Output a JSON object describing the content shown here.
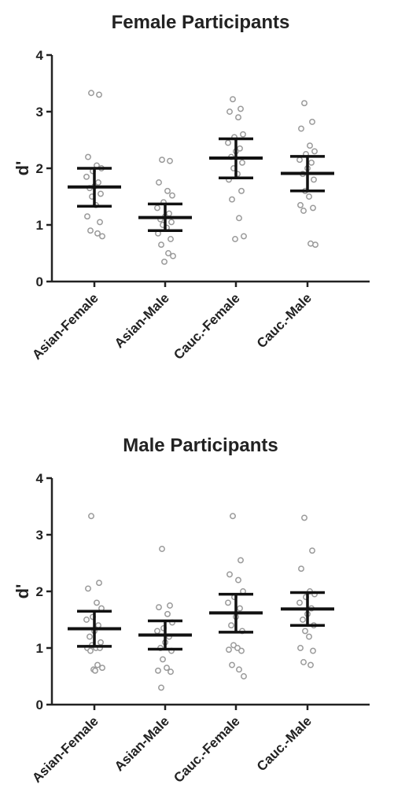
{
  "chart_data": [
    {
      "type": "scatter",
      "title": "Female Participants",
      "xlabel": "",
      "ylabel": "d'",
      "ylim": [
        0,
        4
      ],
      "yticks": [
        "0",
        "1",
        "2",
        "3",
        "4"
      ],
      "categories": [
        "Asian-Female",
        "Asian-Male",
        "Cauc.-Female",
        "Cauc.-Male"
      ],
      "grid": false,
      "point_color": "#9a9a9a",
      "summary_color": "#111111",
      "groups": [
        {
          "category": "Asian-Female",
          "mean": 1.67,
          "error_low": 1.33,
          "error_high": 2.0,
          "points": [
            3.33,
            3.3,
            2.2,
            2.05,
            2.0,
            1.95,
            1.85,
            1.75,
            1.68,
            1.65,
            1.55,
            1.5,
            1.35,
            1.15,
            1.05,
            0.9,
            0.85,
            0.8
          ]
        },
        {
          "category": "Asian-Male",
          "mean": 1.13,
          "error_low": 0.9,
          "error_high": 1.37,
          "points": [
            2.15,
            2.13,
            1.75,
            1.6,
            1.52,
            1.4,
            1.3,
            1.2,
            1.15,
            1.1,
            1.05,
            1.0,
            0.95,
            0.85,
            0.75,
            0.65,
            0.5,
            0.45,
            0.35
          ]
        },
        {
          "category": "Cauc.-Female",
          "mean": 2.18,
          "error_low": 1.83,
          "error_high": 2.52,
          "points": [
            3.22,
            3.05,
            3.0,
            2.9,
            2.6,
            2.55,
            2.45,
            2.35,
            2.3,
            2.2,
            2.1,
            2.0,
            1.9,
            1.8,
            1.6,
            1.45,
            1.12,
            0.8,
            0.75
          ]
        },
        {
          "category": "Cauc.-Male",
          "mean": 1.91,
          "error_low": 1.6,
          "error_high": 2.21,
          "points": [
            3.15,
            2.82,
            2.7,
            2.4,
            2.3,
            2.25,
            2.15,
            2.1,
            2.0,
            1.9,
            1.8,
            1.6,
            1.5,
            1.35,
            1.3,
            1.25,
            0.67,
            0.65
          ]
        }
      ]
    },
    {
      "type": "scatter",
      "title": "Male Participants",
      "xlabel": "",
      "ylabel": "d'",
      "ylim": [
        0,
        4
      ],
      "yticks": [
        "0",
        "1",
        "2",
        "3",
        "4"
      ],
      "categories": [
        "Asian-Female",
        "Asian-Male",
        "Cauc.-Female",
        "Cauc.-Male"
      ],
      "grid": false,
      "point_color": "#9a9a9a",
      "summary_color": "#111111",
      "groups": [
        {
          "category": "Asian-Female",
          "mean": 1.34,
          "error_low": 1.03,
          "error_high": 1.65,
          "points": [
            3.33,
            2.15,
            2.05,
            1.8,
            1.7,
            1.55,
            1.5,
            1.4,
            1.3,
            1.2,
            1.1,
            1.05,
            1.0,
            1.0,
            1.0,
            0.95,
            0.7,
            0.65,
            0.62,
            0.6
          ]
        },
        {
          "category": "Asian-Male",
          "mean": 1.23,
          "error_low": 0.98,
          "error_high": 1.48,
          "points": [
            2.75,
            1.75,
            1.72,
            1.6,
            1.45,
            1.35,
            1.3,
            1.2,
            1.1,
            1.0,
            0.95,
            0.8,
            0.65,
            0.6,
            0.58,
            0.3
          ]
        },
        {
          "category": "Cauc.-Female",
          "mean": 1.62,
          "error_low": 1.28,
          "error_high": 1.95,
          "points": [
            3.33,
            2.55,
            2.3,
            2.2,
            2.0,
            1.9,
            1.8,
            1.7,
            1.55,
            1.4,
            1.3,
            1.05,
            1.0,
            0.97,
            0.95,
            0.7,
            0.62,
            0.5
          ]
        },
        {
          "category": "Cauc.-Male",
          "mean": 1.69,
          "error_low": 1.4,
          "error_high": 1.98,
          "points": [
            3.3,
            2.72,
            2.4,
            2.0,
            1.95,
            1.9,
            1.8,
            1.7,
            1.6,
            1.5,
            1.4,
            1.3,
            1.2,
            1.0,
            0.95,
            0.75,
            0.7
          ]
        }
      ]
    }
  ]
}
